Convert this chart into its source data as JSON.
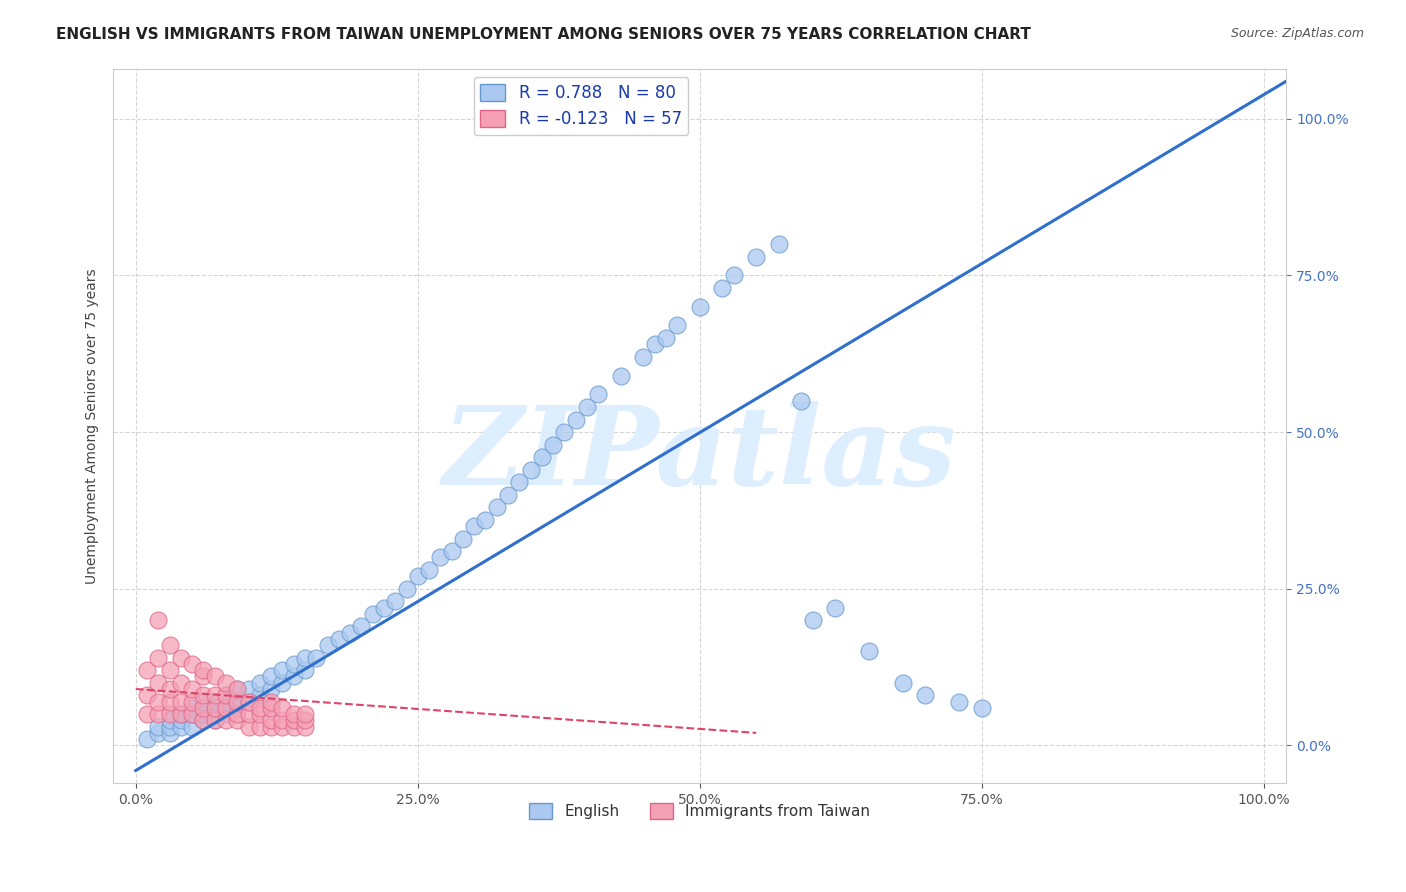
{
  "title": "ENGLISH VS IMMIGRANTS FROM TAIWAN UNEMPLOYMENT AMONG SENIORS OVER 75 YEARS CORRELATION CHART",
  "source": "Source: ZipAtlas.com",
  "ylabel": "Unemployment Among Seniors over 75 years",
  "xlim": [
    -0.02,
    1.02
  ],
  "ylim": [
    -0.06,
    1.08
  ],
  "xticks": [
    0.0,
    0.25,
    0.5,
    0.75,
    1.0
  ],
  "yticks": [
    0.0,
    0.25,
    0.5,
    0.75,
    1.0
  ],
  "english_color": "#aac8f0",
  "taiwan_color": "#f5a0b5",
  "english_edge": "#6699cc",
  "taiwan_edge": "#dd6688",
  "trend_english_color": "#3070cc",
  "trend_taiwan_color": "#dd4466",
  "watermark": "ZIPatlas",
  "watermark_color": "#ddeeff",
  "legend_R_english": "R = 0.788",
  "legend_N_english": "N = 80",
  "legend_R_taiwan": "R = -0.123",
  "legend_N_taiwan": "N = 57",
  "english_label": "English",
  "taiwan_label": "Immigrants from Taiwan",
  "background_color": "#ffffff",
  "grid_color": "#bbbbbb",
  "title_fontsize": 11,
  "axis_label_fontsize": 10,
  "tick_fontsize": 10,
  "legend_fontsize": 12,
  "english_x": [
    0.01,
    0.02,
    0.02,
    0.03,
    0.03,
    0.03,
    0.04,
    0.04,
    0.04,
    0.05,
    0.05,
    0.05,
    0.06,
    0.06,
    0.06,
    0.07,
    0.07,
    0.07,
    0.08,
    0.08,
    0.08,
    0.09,
    0.09,
    0.09,
    0.1,
    0.1,
    0.11,
    0.11,
    0.12,
    0.12,
    0.13,
    0.13,
    0.14,
    0.14,
    0.15,
    0.15,
    0.16,
    0.17,
    0.18,
    0.19,
    0.2,
    0.21,
    0.22,
    0.23,
    0.24,
    0.25,
    0.26,
    0.27,
    0.28,
    0.29,
    0.3,
    0.31,
    0.32,
    0.33,
    0.34,
    0.35,
    0.36,
    0.37,
    0.38,
    0.39,
    0.4,
    0.41,
    0.43,
    0.45,
    0.46,
    0.47,
    0.48,
    0.5,
    0.52,
    0.53,
    0.55,
    0.57,
    0.59,
    0.6,
    0.62,
    0.65,
    0.68,
    0.7,
    0.73,
    0.75
  ],
  "english_y": [
    0.01,
    0.02,
    0.03,
    0.02,
    0.03,
    0.04,
    0.03,
    0.04,
    0.05,
    0.03,
    0.05,
    0.06,
    0.04,
    0.05,
    0.07,
    0.04,
    0.06,
    0.07,
    0.05,
    0.07,
    0.08,
    0.06,
    0.07,
    0.09,
    0.07,
    0.09,
    0.08,
    0.1,
    0.09,
    0.11,
    0.1,
    0.12,
    0.11,
    0.13,
    0.12,
    0.14,
    0.14,
    0.16,
    0.17,
    0.18,
    0.19,
    0.21,
    0.22,
    0.23,
    0.25,
    0.27,
    0.28,
    0.3,
    0.31,
    0.33,
    0.35,
    0.36,
    0.38,
    0.4,
    0.42,
    0.44,
    0.46,
    0.48,
    0.5,
    0.52,
    0.54,
    0.56,
    0.59,
    0.62,
    0.64,
    0.65,
    0.67,
    0.7,
    0.73,
    0.75,
    0.78,
    0.8,
    0.55,
    0.2,
    0.22,
    0.15,
    0.1,
    0.08,
    0.07,
    0.06
  ],
  "taiwan_x": [
    0.01,
    0.01,
    0.01,
    0.02,
    0.02,
    0.02,
    0.02,
    0.03,
    0.03,
    0.03,
    0.03,
    0.04,
    0.04,
    0.04,
    0.05,
    0.05,
    0.05,
    0.06,
    0.06,
    0.06,
    0.06,
    0.07,
    0.07,
    0.07,
    0.08,
    0.08,
    0.08,
    0.09,
    0.09,
    0.09,
    0.1,
    0.1,
    0.1,
    0.11,
    0.11,
    0.11,
    0.12,
    0.12,
    0.12,
    0.12,
    0.13,
    0.13,
    0.13,
    0.14,
    0.14,
    0.14,
    0.15,
    0.15,
    0.15,
    0.02,
    0.03,
    0.04,
    0.05,
    0.06,
    0.07,
    0.08,
    0.09
  ],
  "taiwan_y": [
    0.05,
    0.08,
    0.12,
    0.05,
    0.07,
    0.1,
    0.14,
    0.05,
    0.07,
    0.09,
    0.12,
    0.05,
    0.07,
    0.1,
    0.05,
    0.07,
    0.09,
    0.04,
    0.06,
    0.08,
    0.11,
    0.04,
    0.06,
    0.08,
    0.04,
    0.06,
    0.08,
    0.04,
    0.05,
    0.07,
    0.03,
    0.05,
    0.07,
    0.03,
    0.05,
    0.06,
    0.03,
    0.04,
    0.06,
    0.07,
    0.03,
    0.04,
    0.06,
    0.03,
    0.04,
    0.05,
    0.03,
    0.04,
    0.05,
    0.2,
    0.16,
    0.14,
    0.13,
    0.12,
    0.11,
    0.1,
    0.09
  ],
  "trend_eng_x0": 0.0,
  "trend_eng_y0": -0.04,
  "trend_eng_x1": 1.02,
  "trend_eng_y1": 1.06,
  "trend_tai_x0": 0.0,
  "trend_tai_y0": 0.09,
  "trend_tai_x1": 0.55,
  "trend_tai_y1": 0.02
}
